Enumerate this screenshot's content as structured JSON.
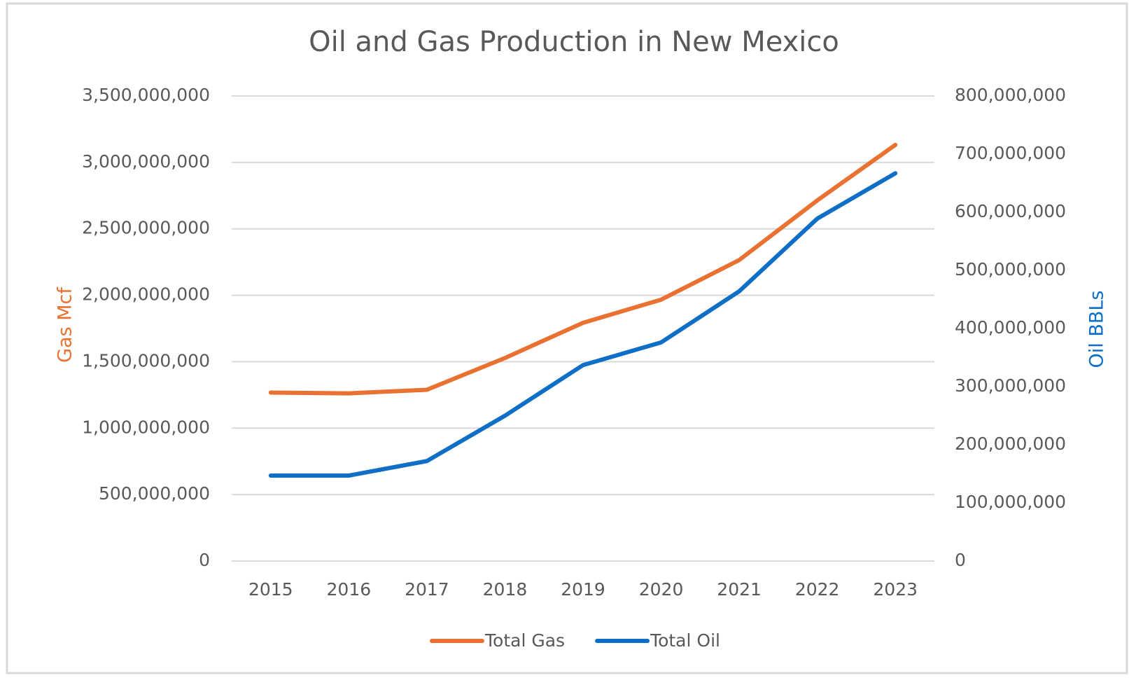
{
  "chart_data": {
    "type": "line",
    "title": "Oil and Gas Production in New Mexico",
    "y_label": "Gas Mcf",
    "y2_label": "Oil BBLs",
    "categories": [
      "2015",
      "2016",
      "2017",
      "2018",
      "2019",
      "2020",
      "2021",
      "2022",
      "2023"
    ],
    "series": [
      {
        "name": "Total Gas",
        "color": "#e97132",
        "values": [
          1268000000,
          1262000000,
          1289000000,
          1528000000,
          1793000000,
          1967000000,
          2265000000,
          2714000000,
          3132000000
        ]
      },
      {
        "name": "Total Oil",
        "color": "#0f6fc6",
        "axis": "y2",
        "values": [
          147000000,
          147000000,
          172000000,
          250000000,
          337000000,
          376000000,
          464000000,
          589000000,
          667000000
        ]
      }
    ],
    "ylim": [
      0,
      3500000000
    ],
    "yticks": [
      0,
      {
        "value": 500000000,
        "label": "500,000,000"
      },
      {
        "value": 1000000000,
        "label": "1,000,000,000"
      },
      {
        "value": 1500000000,
        "label": "1,500,000,000"
      },
      {
        "value": 2000000000,
        "label": "2,000,000,000"
      },
      {
        "value": 2500000000,
        "label": "2,500,000,000"
      },
      {
        "value": 3000000000,
        "label": "3,000,000,000"
      },
      {
        "value": 3500000000,
        "label": "3,500,000,000"
      }
    ],
    "y2lim": [
      0,
      800000000
    ],
    "y2ticks": [
      0,
      {
        "value": 100000000,
        "label": "100,000,000"
      },
      {
        "value": 200000000,
        "label": "200,000,000"
      },
      {
        "value": 300000000,
        "label": "300,000,000"
      },
      {
        "value": 400000000,
        "label": "400,000,000"
      },
      {
        "value": 500000000,
        "label": "500,000,000"
      },
      {
        "value": 600000000,
        "label": "600,000,000"
      },
      {
        "value": 700000000,
        "label": "700,000,000"
      },
      {
        "value": 800000000,
        "label": "800,000,000"
      }
    ],
    "grid": true,
    "legend": "bottom"
  }
}
